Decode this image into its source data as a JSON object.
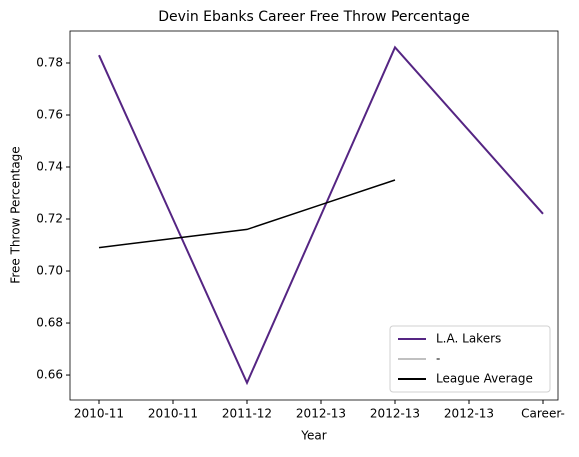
{
  "chart_data": {
    "type": "line",
    "title": "Devin Ebanks Career Free Throw Percentage",
    "xlabel": "Year",
    "ylabel": "Free Throw Percentage",
    "categories": [
      "2010-11",
      "2010-11",
      "2011-12",
      "2012-13",
      "2012-13",
      "2012-13",
      "Career-"
    ],
    "series": [
      {
        "name": "L.A. Lakers",
        "color": "#552583",
        "values": [
          0.783,
          0.72,
          0.657,
          0.7215,
          0.786,
          0.754,
          0.722
        ]
      },
      {
        "name": "-",
        "color": "#c0c0c0",
        "values": [
          null,
          null,
          null,
          null,
          null,
          null,
          null
        ]
      },
      {
        "name": "League Average",
        "color": "#000000",
        "values": [
          0.709,
          0.7125,
          0.716,
          0.7255,
          0.735,
          null,
          null
        ]
      }
    ],
    "ylim": [
      0.6504,
      0.7923
    ],
    "yticks": [
      0.66,
      0.68,
      {
        "value": 0.7,
        "label": "0.70"
      },
      0.72,
      0.74,
      0.76,
      0.78
    ],
    "legend": "lower right"
  }
}
